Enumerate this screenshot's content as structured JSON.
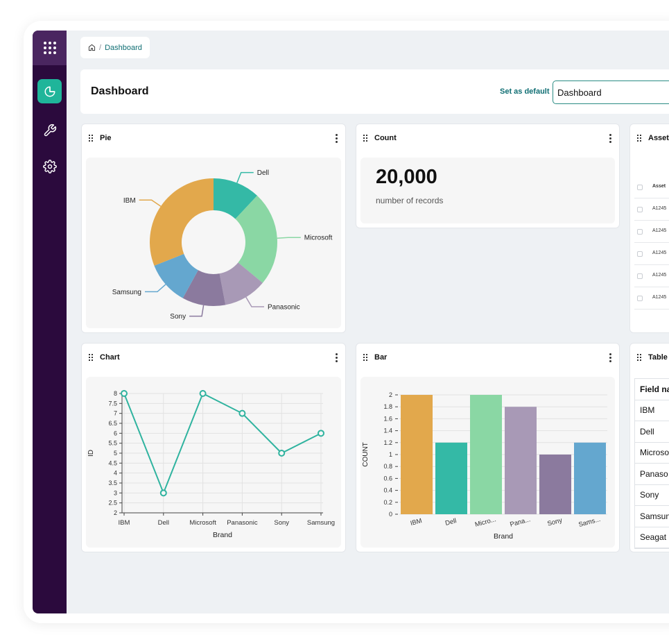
{
  "sidebar": {
    "items": [
      {
        "icon": "pie-chart-icon",
        "active": true
      },
      {
        "icon": "wrench-icon",
        "active": false
      },
      {
        "icon": "gear-icon",
        "active": false
      }
    ]
  },
  "breadcrumb": {
    "icon": "home-icon",
    "separator": "/",
    "current": "Dashboard"
  },
  "header": {
    "title": "Dashboard",
    "set_default_label": "Set as default",
    "select_value": "Dashboard"
  },
  "colors": {
    "accent": "#1fb59a",
    "sidebar": "#2b0a3d",
    "link": "#0f6e73"
  },
  "cards": {
    "pie": {
      "title": "Pie"
    },
    "count": {
      "title": "Count",
      "value": "20,000",
      "label": "number of records"
    },
    "assets": {
      "title": "Asset",
      "header": "Asset",
      "rows": [
        "A1245",
        "A1245",
        "A1245",
        "A1245",
        "A1245"
      ]
    },
    "chart": {
      "title": "Chart"
    },
    "bar": {
      "title": "Bar"
    },
    "table": {
      "title": "Table",
      "header": "Field na",
      "rows": [
        "IBM",
        "Dell",
        "Microso",
        "Panaso",
        "Sony",
        "Samsun",
        "Seagat"
      ]
    }
  },
  "chart_data": [
    {
      "type": "pie",
      "title": "Pie",
      "categories": [
        "Dell",
        "Microsoft",
        "Panasonic",
        "Sony",
        "Samsung",
        "IBM"
      ],
      "values": [
        12,
        24,
        11,
        11,
        11,
        31
      ],
      "colors": [
        "#34b9a6",
        "#8ad7a4",
        "#a899b6",
        "#8b7a9e",
        "#64a7cf",
        "#e2a84c"
      ]
    },
    {
      "type": "line",
      "title": "Chart",
      "xlabel": "Brand",
      "ylabel": "ID",
      "categories": [
        "IBM",
        "Dell",
        "Microsoft",
        "Panasonic",
        "Sony",
        "Samsung"
      ],
      "values": [
        8,
        3,
        8,
        7,
        5,
        6
      ],
      "ylim": [
        2,
        8
      ],
      "yticks": [
        "2",
        "2.5",
        "3",
        "3.5",
        "4",
        "4.5",
        "5",
        "5.5",
        "6",
        "6.5",
        "7",
        "7.5",
        "8"
      ],
      "grid": true,
      "color": "#2fb39f"
    },
    {
      "type": "bar",
      "title": "Bar",
      "xlabel": "Brand",
      "ylabel": "COUNT",
      "categories": [
        "IBM",
        "Dell",
        "Micro...",
        "Pana...",
        "Sony",
        "Sams..."
      ],
      "values": [
        2,
        1.2,
        2,
        1.8,
        1,
        1.2
      ],
      "ylim": [
        0,
        2
      ],
      "yticks": [
        "0",
        "0.2",
        "0.4",
        "0.6",
        "0.8",
        "1",
        "1.2",
        "1.4",
        "1.6",
        "1.8",
        "2"
      ],
      "grid": true,
      "colors": [
        "#e2a84c",
        "#34b9a6",
        "#8ad7a4",
        "#a899b6",
        "#8b7a9e",
        "#64a7cf"
      ]
    }
  ]
}
